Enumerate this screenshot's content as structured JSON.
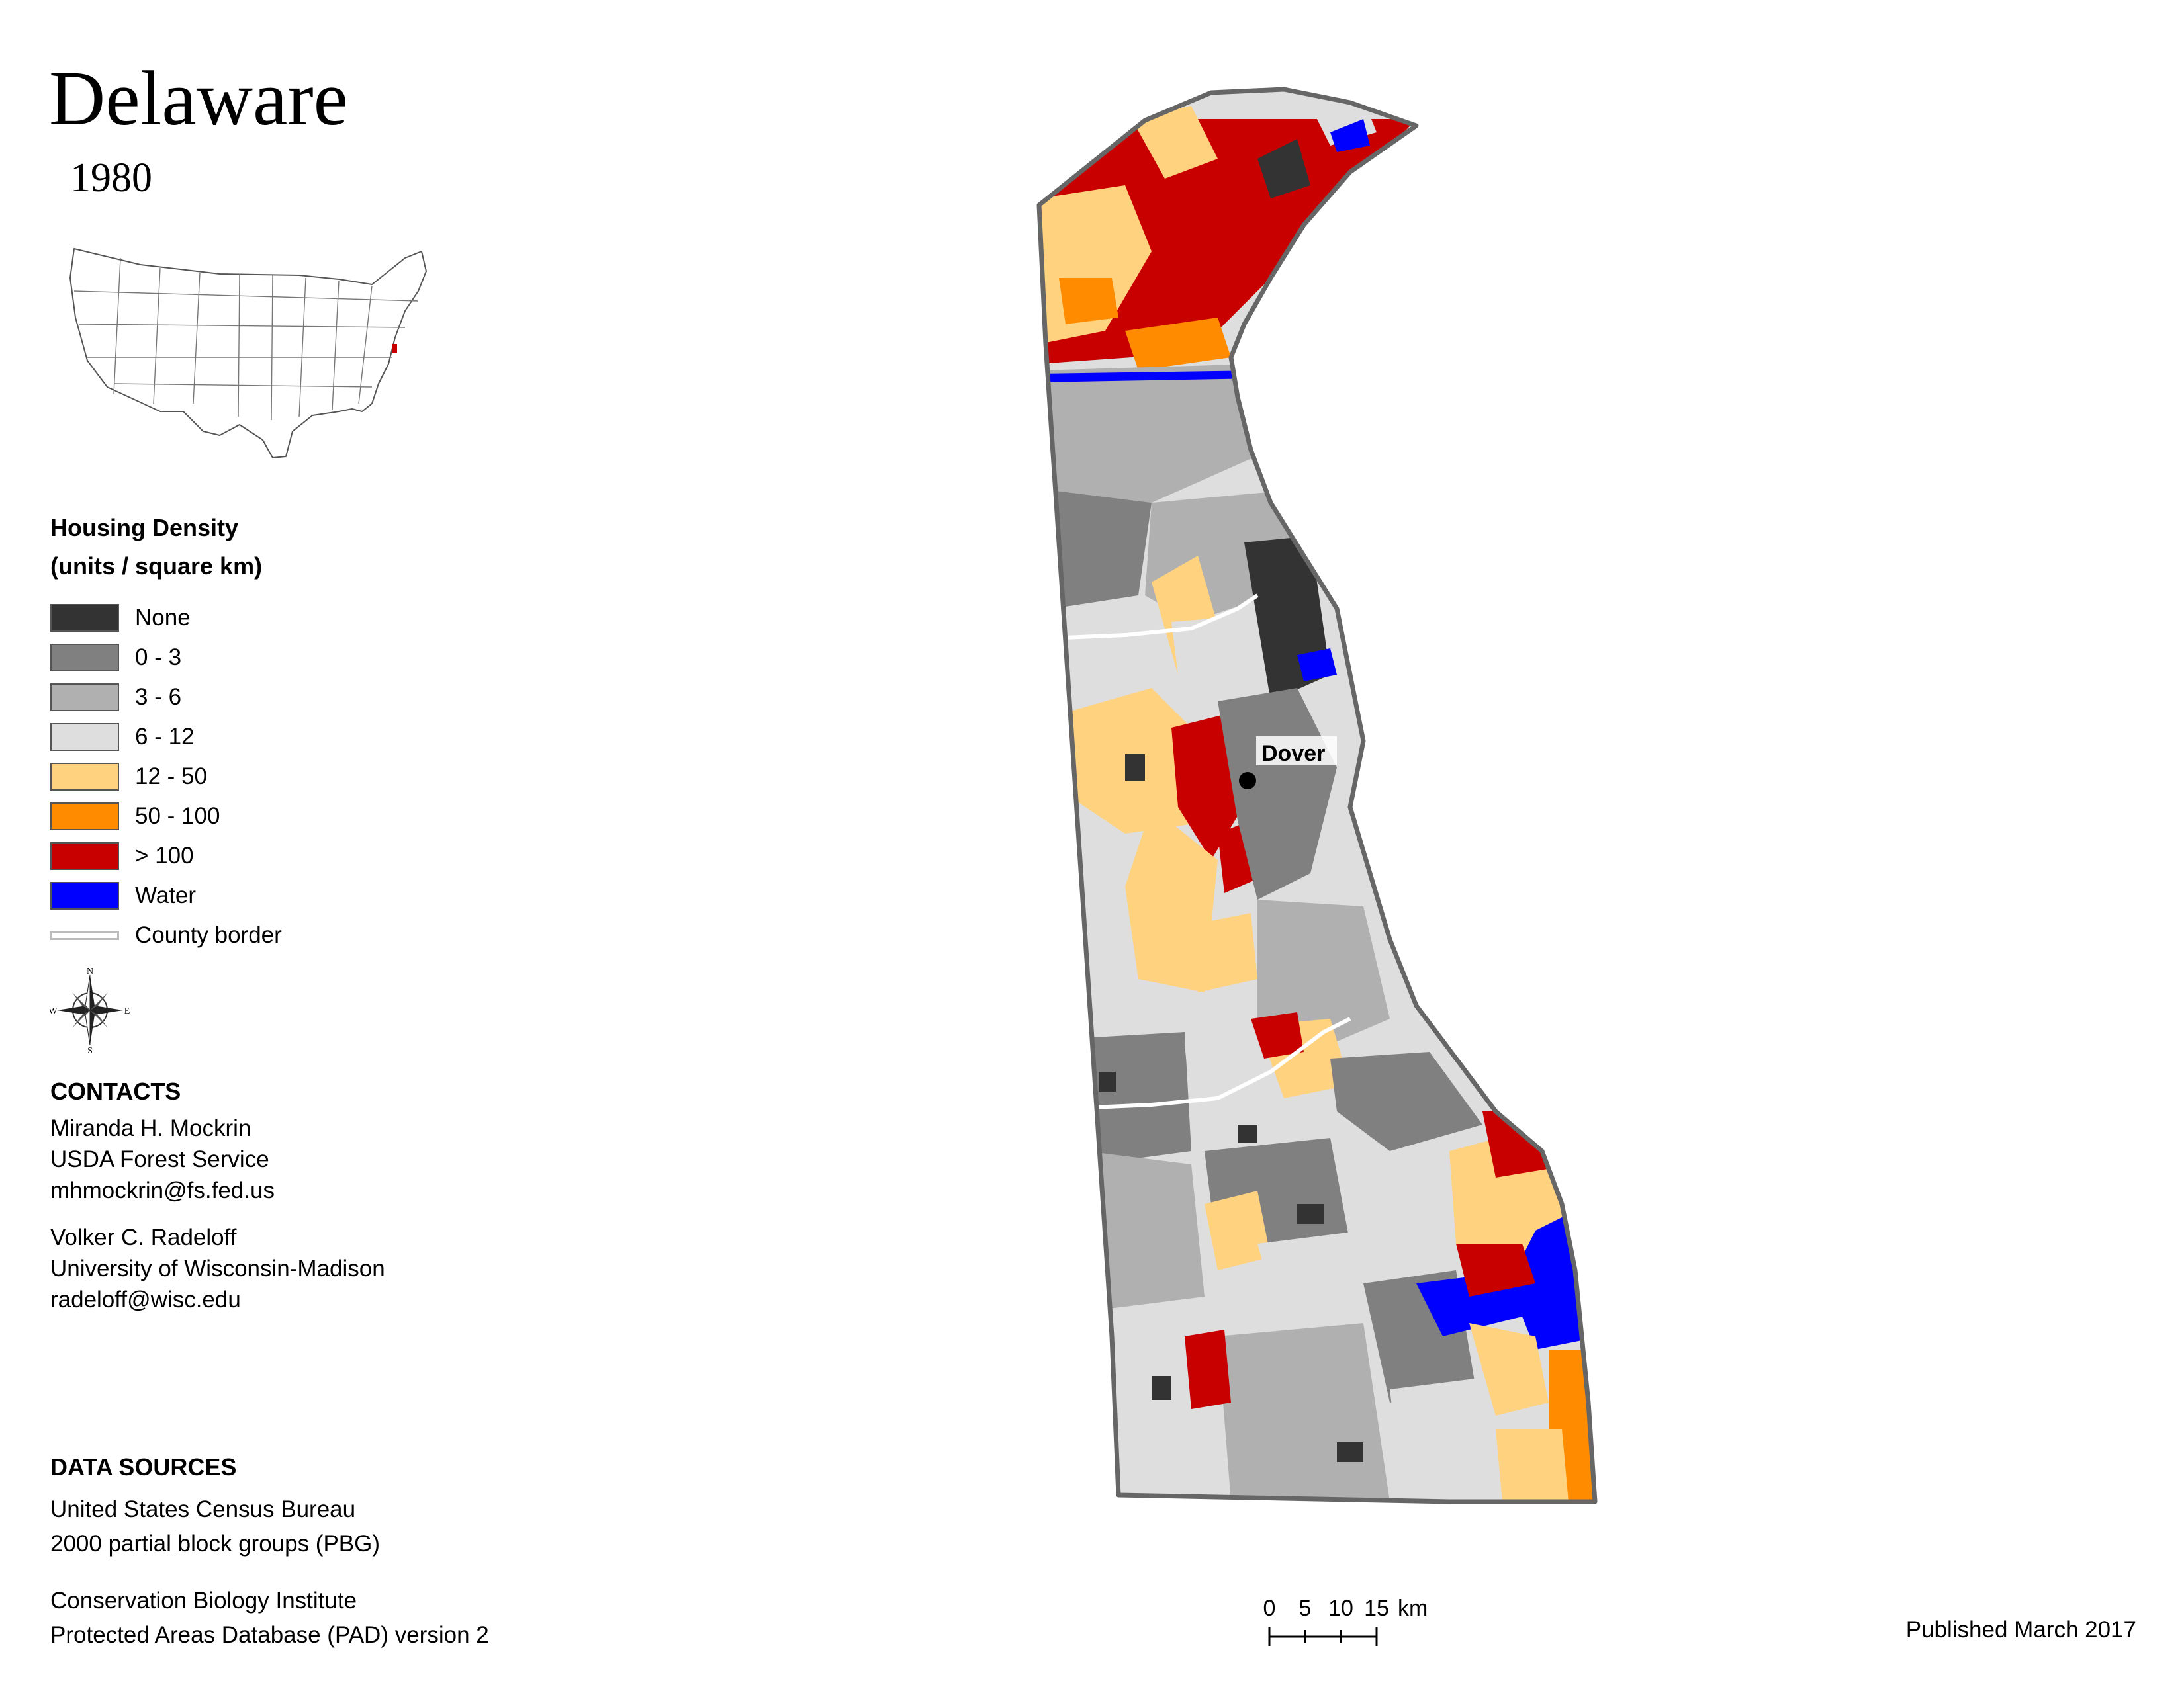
{
  "title": "Delaware",
  "year": "1980",
  "legend": {
    "heading_line1": "Housing Density",
    "heading_line2": "(units / square km)",
    "items": [
      {
        "label": "None",
        "color": "#333333"
      },
      {
        "label": "0 - 3",
        "color": "#808080"
      },
      {
        "label": "3 - 6",
        "color": "#b0b0b0"
      },
      {
        "label": "6 - 12",
        "color": "#dedede"
      },
      {
        "label": "12 - 50",
        "color": "#ffd280"
      },
      {
        "label": "50 - 100",
        "color": "#ff8c00"
      },
      {
        "label": "> 100",
        "color": "#c80000"
      },
      {
        "label": "Water",
        "color": "#0000ff"
      }
    ],
    "county_border_label": "County border"
  },
  "compass": {
    "n": "N",
    "s": "S",
    "e": "E",
    "w": "W"
  },
  "contacts": {
    "heading": "CONTACTS",
    "person1": {
      "name": "Miranda H. Mockrin",
      "org": "USDA Forest Service",
      "email": "mhmockrin@fs.fed.us"
    },
    "person2": {
      "name": "Volker C. Radeloff",
      "org": "University of Wisconsin-Madison",
      "email": "radeloff@wisc.edu"
    }
  },
  "data_sources": {
    "heading": "DATA SOURCES",
    "source1_line1": "United States Census Bureau",
    "source1_line2": "2000 partial block groups (PBG)",
    "source2_line1": "Conservation Biology Institute",
    "source2_line2": "Protected Areas Database (PAD) version 2"
  },
  "map": {
    "city_label": "Dover"
  },
  "scale_bar": {
    "t0": "0",
    "t1": "5",
    "t2": "10",
    "t3": "15",
    "unit": "km"
  },
  "published": "Published March 2017"
}
